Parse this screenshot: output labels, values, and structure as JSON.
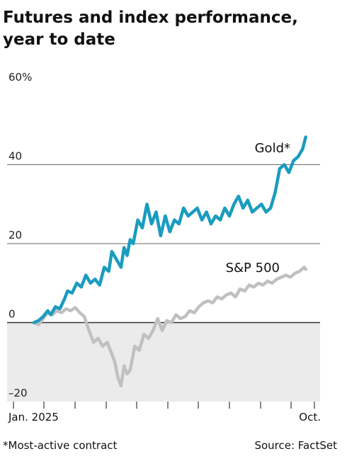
{
  "header": {
    "title_line1": "Futures and index performance,",
    "title_line2": "year to date"
  },
  "footer": {
    "note": "*Most-active contract",
    "source": "Source: FactSet"
  },
  "colors": {
    "gold": "#1a9cbf",
    "sp500": "#c0c0c0",
    "negative_band": "#ebebeb",
    "gridline": "#333333"
  },
  "chart_data": {
    "type": "line",
    "title": "Futures and index performance, year to date",
    "xlabel": "",
    "ylabel": "",
    "x_tick_labels": [
      "Jan. 2025",
      "Oct."
    ],
    "y_tick_labels": [
      "60%",
      "40",
      "20",
      "0",
      "–20"
    ],
    "ylim": [
      -20,
      60
    ],
    "xlim": [
      0,
      9
    ],
    "x_unit": "months since Jan. 1, 2025",
    "grid": true,
    "negative_region_shaded": true,
    "series": [
      {
        "name": "Gold*",
        "x": [
          0,
          0.15,
          0.3,
          0.45,
          0.55,
          0.7,
          0.85,
          1.0,
          1.1,
          1.25,
          1.4,
          1.55,
          1.7,
          1.85,
          2.0,
          2.15,
          2.3,
          2.45,
          2.55,
          2.7,
          2.85,
          2.95,
          3.05,
          3.15,
          3.25,
          3.4,
          3.55,
          3.7,
          3.85,
          4.0,
          4.15,
          4.3,
          4.45,
          4.6,
          4.75,
          4.9,
          5.05,
          5.2,
          5.35,
          5.5,
          5.65,
          5.8,
          5.95,
          6.1,
          6.25,
          6.4,
          6.55,
          6.7,
          6.85,
          7.0,
          7.15,
          7.3,
          7.45,
          7.6,
          7.75,
          7.9,
          8.05,
          8.2,
          8.35,
          8.5,
          8.65,
          8.8,
          8.9
        ],
        "values": [
          0,
          0.5,
          1.5,
          3,
          2,
          4,
          3.5,
          6,
          8,
          7.5,
          10,
          9,
          12,
          10,
          11,
          9.5,
          14,
          13,
          18,
          16,
          14,
          19,
          17,
          21,
          20,
          26,
          24,
          30,
          25,
          28,
          22,
          27,
          23,
          26,
          25,
          29,
          27,
          28,
          29,
          26,
          28,
          25,
          27,
          26,
          29,
          27,
          30,
          32,
          29,
          31,
          28,
          29,
          30,
          28,
          29,
          33,
          39,
          40,
          38,
          41,
          42,
          44,
          47
        ]
      },
      {
        "name": "S&P 500",
        "x": [
          0,
          0.15,
          0.3,
          0.45,
          0.6,
          0.75,
          0.9,
          1.05,
          1.2,
          1.35,
          1.5,
          1.65,
          1.8,
          1.95,
          2.1,
          2.25,
          2.4,
          2.5,
          2.65,
          2.75,
          2.85,
          2.95,
          3.05,
          3.15,
          3.3,
          3.45,
          3.6,
          3.75,
          3.9,
          4.05,
          4.2,
          4.35,
          4.5,
          4.65,
          4.8,
          4.95,
          5.1,
          5.25,
          5.4,
          5.55,
          5.7,
          5.85,
          6.0,
          6.15,
          6.3,
          6.45,
          6.6,
          6.75,
          6.9,
          7.05,
          7.2,
          7.35,
          7.5,
          7.65,
          7.8,
          7.95,
          8.1,
          8.25,
          8.4,
          8.55,
          8.7,
          8.85,
          8.9
        ],
        "values": [
          0,
          -0.5,
          1,
          2.5,
          2,
          3,
          2.5,
          3.5,
          3,
          3.8,
          2.5,
          1.5,
          -2,
          -5,
          -4,
          -6,
          -5,
          -7,
          -10,
          -14,
          -16,
          -11,
          -13,
          -12,
          -6,
          -7,
          -3,
          -4,
          -2,
          1,
          -2,
          0.5,
          0,
          2,
          1,
          1.5,
          3,
          2.5,
          4,
          5,
          5.5,
          5,
          6.5,
          6,
          7,
          7.5,
          6.5,
          8.5,
          8,
          9.5,
          9,
          10,
          9.5,
          10.5,
          10,
          11,
          11.5,
          12,
          11.5,
          12.5,
          13,
          14,
          13.5
        ]
      }
    ]
  }
}
